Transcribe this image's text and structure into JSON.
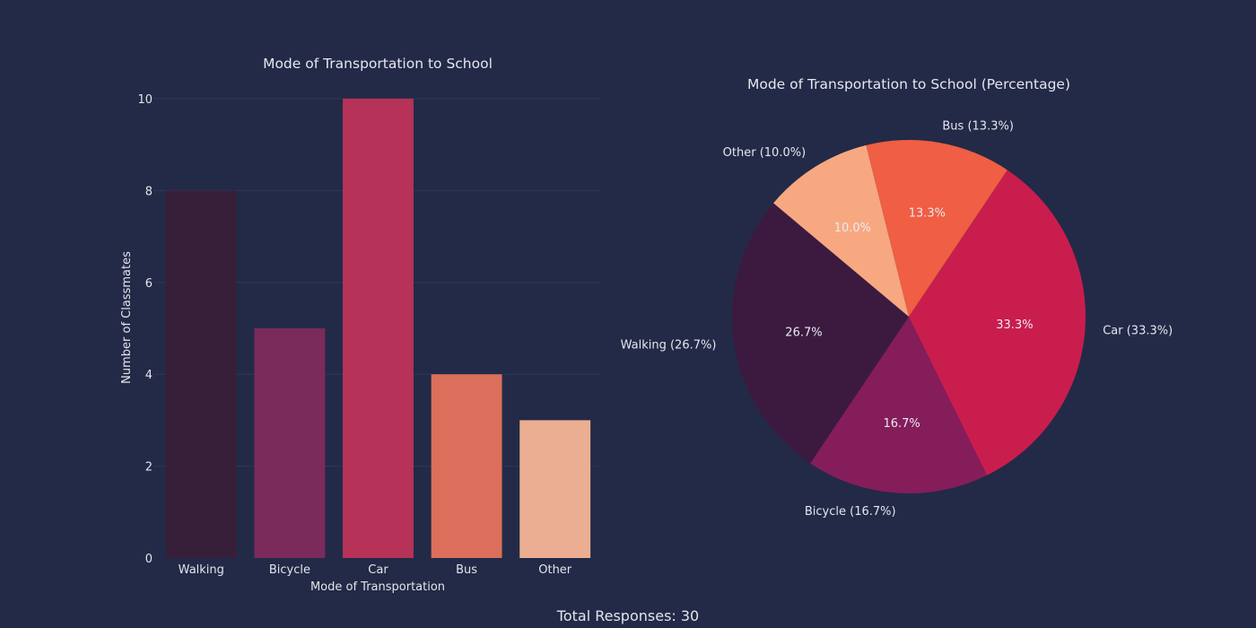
{
  "footer": {
    "total_label": "Total Responses: 30"
  },
  "colors": {
    "background": "#222a47",
    "bar_colors": [
      "#371f3a",
      "#7a2b5b",
      "#b63258",
      "#db6f5b",
      "#ebae92"
    ],
    "pie_colors": [
      "#3c1a40",
      "#851d5b",
      "#c91d4e",
      "#f05e43",
      "#f7a881"
    ],
    "grid": "#2f3858",
    "text": "#e4e4ea"
  },
  "chart_data": [
    {
      "type": "bar",
      "title": "Mode of Transportation to School",
      "xlabel": "Mode of Transportation",
      "ylabel": "Number of Classmates",
      "categories": [
        "Walking",
        "Bicycle",
        "Car",
        "Bus",
        "Other"
      ],
      "values": [
        8,
        5,
        10,
        4,
        3
      ],
      "ylim": [
        0,
        10
      ],
      "yticks": [
        "0",
        "2",
        "4",
        "6",
        "8",
        "10"
      ],
      "grid": true
    },
    {
      "type": "pie",
      "title": "Mode of Transportation to School (Percentage)",
      "categories": [
        "Walking",
        "Bicycle",
        "Car",
        "Bus",
        "Other"
      ],
      "values": [
        26.7,
        16.7,
        33.3,
        13.3,
        10.0
      ],
      "outer_labels": [
        "Walking (26.7%)",
        "Bicycle (16.7%)",
        "Car (33.3%)",
        "Bus (13.3%)",
        "Other (10.0%)"
      ],
      "inner_labels": [
        "26.7%",
        "16.7%",
        "33.3%",
        "13.3%",
        "10.0%"
      ]
    }
  ]
}
